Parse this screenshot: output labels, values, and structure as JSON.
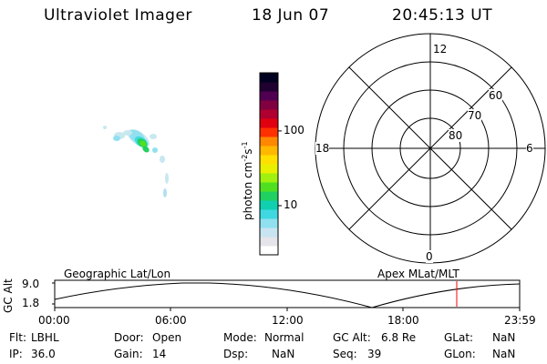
{
  "header": {
    "title": "Ultraviolet Imager",
    "date": "18 Jun 07",
    "time": "20:45:13 UT"
  },
  "colorbar": {
    "label_prefix": "photon cm",
    "exp1": "-2",
    "mid": "s",
    "exp2": "-1",
    "ticks": [
      {
        "value": 100,
        "label": "100"
      },
      {
        "value": 10,
        "label": "10"
      }
    ],
    "colors": [
      "#ffffff",
      "#e4e4ea",
      "#c8e4f0",
      "#90e0f0",
      "#40d8e0",
      "#10d0b0",
      "#20d060",
      "#50e020",
      "#a0f010",
      "#e8f000",
      "#ffe000",
      "#ffb800",
      "#ff8800",
      "#ff3000",
      "#e00010",
      "#b00030",
      "#800040",
      "#500050",
      "#200030",
      "#000020"
    ]
  },
  "polar": {
    "mlt_labels": {
      "top": "12",
      "left": "18",
      "right": "6",
      "bottom": "0"
    },
    "lat_labels": [
      "60",
      "70",
      "80"
    ]
  },
  "timeline": {
    "left_title": "Geographic Lat/Lon",
    "right_title": "Apex MLat/MLT",
    "ylabel": "GC Alt",
    "yticks": [
      "9.0",
      "1.8"
    ],
    "xticks": [
      "00:00",
      "06:00",
      "12:00",
      "18:00",
      "23:59"
    ],
    "current_time_fraction": 0.8647,
    "marker_color": "#ff0000"
  },
  "info": {
    "flt_label": "Flt:",
    "flt_value": "LBHL",
    "ip_label": "IP:",
    "ip_value": "36.0",
    "door_label": "Door:",
    "door_value": "Open",
    "gain_label": "Gain:",
    "gain_value": "14",
    "mode_label": "Mode:",
    "mode_value": "Normal",
    "dsp_label": "Dsp:",
    "dsp_value": "NaN",
    "gcalt_label": "GC Alt:",
    "gcalt_value": "6.8 Re",
    "seq_label": "Seq:",
    "seq_value": "39",
    "glat_label": "GLat:",
    "glat_value": "NaN",
    "glon_label": "GLon:",
    "glon_value": "NaN"
  }
}
